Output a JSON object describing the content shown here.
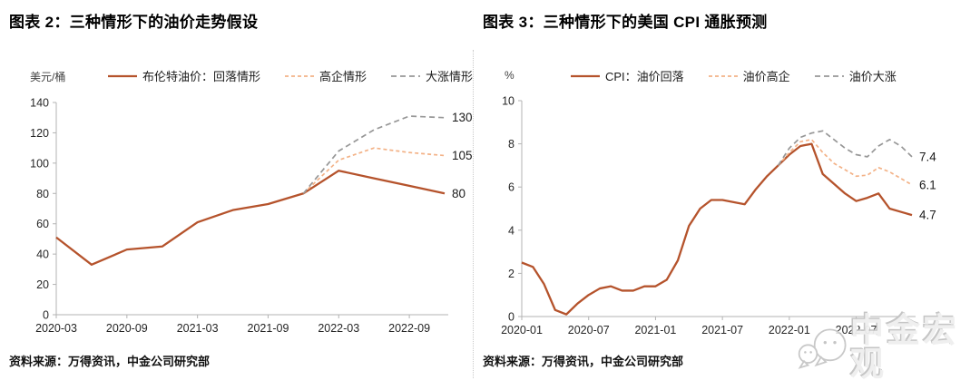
{
  "watermark": {
    "text": "中金宏观",
    "icon": "chat-bubbles-icon"
  },
  "colors": {
    "series_solid": "#b5532c",
    "series_light_orange": "#f3b287",
    "series_gray": "#979797",
    "axis": "#b3b3b3",
    "divider": "#c9c9c9"
  },
  "chart_data": [
    {
      "type": "line",
      "title": "图表 2：三种情形下的油价走势假设",
      "unit_label": "美元/桶",
      "source": "资料来源：万得资讯，中金公司研究部",
      "ylim": [
        0,
        140
      ],
      "yticks": [
        0,
        20,
        40,
        60,
        80,
        100,
        120,
        140
      ],
      "grid": false,
      "legend_position": "top",
      "x": [
        "2020-03",
        "2020-06",
        "2020-09",
        "2020-12",
        "2021-03",
        "2021-06",
        "2021-09",
        "2021-12",
        "2022-03",
        "2022-06",
        "2022-09",
        "2022-12"
      ],
      "xtick_labels": [
        "2020-03",
        "2020-09",
        "2021-03",
        "2021-09",
        "2022-03",
        "2022-09"
      ],
      "series": [
        {
          "name": "布伦特油价：回落情形",
          "style": "solid",
          "color": "#b5532c",
          "values": [
            51,
            33,
            43,
            45,
            61,
            69,
            73,
            80,
            95,
            90,
            85,
            80
          ],
          "end_label": "80"
        },
        {
          "name": "高企情形",
          "style": "dashed",
          "color": "#f3b287",
          "values": [
            null,
            null,
            null,
            null,
            null,
            null,
            null,
            80,
            102,
            110,
            107,
            105
          ],
          "end_label": "105"
        },
        {
          "name": "大涨情形",
          "style": "dashed",
          "color": "#979797",
          "values": [
            null,
            null,
            null,
            null,
            null,
            null,
            null,
            80,
            108,
            122,
            131,
            130
          ],
          "end_label": "130"
        }
      ]
    },
    {
      "type": "line",
      "title": "图表 3：三种情形下的美国 CPI 通胀预测",
      "unit_label": "%",
      "source": "资料来源：万得资讯，中金公司研究部",
      "ylim": [
        0,
        10
      ],
      "yticks": [
        0,
        2,
        4,
        6,
        8,
        10
      ],
      "grid": false,
      "legend_position": "top",
      "x": [
        "2020-01",
        "2020-02",
        "2020-03",
        "2020-04",
        "2020-05",
        "2020-06",
        "2020-07",
        "2020-08",
        "2020-09",
        "2020-10",
        "2020-11",
        "2020-12",
        "2021-01",
        "2021-02",
        "2021-03",
        "2021-04",
        "2021-05",
        "2021-06",
        "2021-07",
        "2021-08",
        "2021-09",
        "2021-10",
        "2021-11",
        "2021-12",
        "2022-01",
        "2022-02",
        "2022-03",
        "2022-04",
        "2022-05",
        "2022-06",
        "2022-07",
        "2022-08",
        "2022-09",
        "2022-10",
        "2022-11",
        "2022-12"
      ],
      "xtick_labels": [
        "2020-01",
        "2020-07",
        "2021-01",
        "2021-07",
        "2022-01",
        "2022-07"
      ],
      "series": [
        {
          "name": "CPI：油价回落",
          "style": "solid",
          "color": "#b5532c",
          "values": [
            2.5,
            2.3,
            1.5,
            0.3,
            0.1,
            0.6,
            1.0,
            1.3,
            1.4,
            1.2,
            1.2,
            1.4,
            1.4,
            1.7,
            2.6,
            4.2,
            5.0,
            5.4,
            5.4,
            5.3,
            5.2,
            5.9,
            6.5,
            7.0,
            7.5,
            7.9,
            8.0,
            6.6,
            6.15,
            5.7,
            5.35,
            5.5,
            5.7,
            5.0,
            4.85,
            4.7
          ],
          "end_label": "4.7"
        },
        {
          "name": "油价高企",
          "style": "dashed",
          "color": "#f3b287",
          "values": [
            null,
            null,
            null,
            null,
            null,
            null,
            null,
            null,
            null,
            null,
            null,
            null,
            null,
            null,
            null,
            null,
            null,
            null,
            null,
            null,
            null,
            null,
            null,
            7.0,
            7.6,
            8.1,
            8.2,
            7.6,
            7.1,
            6.8,
            6.5,
            6.55,
            6.9,
            6.7,
            6.4,
            6.1
          ],
          "end_label": "6.1"
        },
        {
          "name": "油价大涨",
          "style": "dashed",
          "color": "#979797",
          "values": [
            null,
            null,
            null,
            null,
            null,
            null,
            null,
            null,
            null,
            null,
            null,
            null,
            null,
            null,
            null,
            null,
            null,
            null,
            null,
            null,
            null,
            null,
            null,
            7.0,
            7.8,
            8.3,
            8.5,
            8.6,
            8.2,
            7.8,
            7.5,
            7.4,
            7.9,
            8.2,
            7.9,
            7.4
          ],
          "end_label": "7.4"
        }
      ]
    }
  ]
}
